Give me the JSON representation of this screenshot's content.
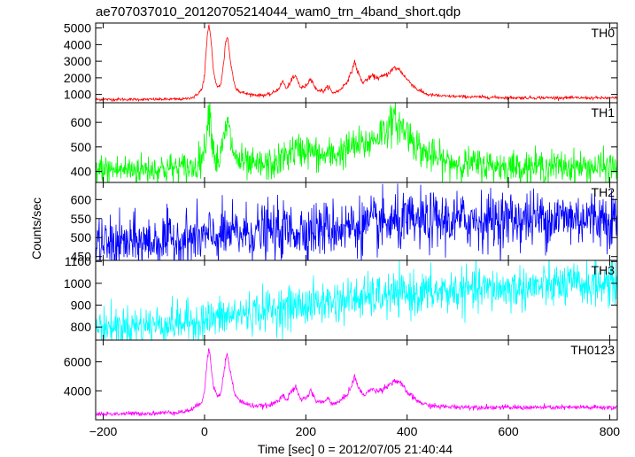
{
  "chart_data": {
    "type": "line",
    "title": "ae707037010_20120705214044_wam0_trn_4band_short.qdp",
    "xlabel": "Time [sec] 0 = 2012/07/05 21:40:44",
    "ylabel": "Counts/sec",
    "xlim": [
      -215,
      815
    ],
    "xticks": [
      -200,
      0,
      200,
      400,
      600,
      800
    ],
    "grid": false,
    "panels": [
      {
        "name": "TH0",
        "color": "#ff0000",
        "ylim": [
          500,
          5300
        ],
        "yticks": [
          1000,
          2000,
          3000,
          4000,
          5000
        ],
        "key_points": [
          [
            -200,
            700
          ],
          [
            -100,
            700
          ],
          [
            -40,
            720
          ],
          [
            -20,
            850
          ],
          [
            -5,
            1300
          ],
          [
            0,
            2200
          ],
          [
            5,
            4300
          ],
          [
            9,
            5200
          ],
          [
            13,
            4200
          ],
          [
            18,
            2300
          ],
          [
            25,
            1400
          ],
          [
            32,
            1600
          ],
          [
            38,
            2900
          ],
          [
            42,
            4300
          ],
          [
            46,
            4400
          ],
          [
            52,
            2800
          ],
          [
            60,
            1500
          ],
          [
            70,
            1150
          ],
          [
            90,
            1000
          ],
          [
            110,
            950
          ],
          [
            130,
            1000
          ],
          [
            145,
            1300
          ],
          [
            155,
            1800
          ],
          [
            162,
            1300
          ],
          [
            172,
            1900
          ],
          [
            180,
            2100
          ],
          [
            190,
            1400
          ],
          [
            200,
            1500
          ],
          [
            210,
            2000
          ],
          [
            220,
            1300
          ],
          [
            235,
            1200
          ],
          [
            245,
            1500
          ],
          [
            252,
            1100
          ],
          [
            265,
            1200
          ],
          [
            280,
            1700
          ],
          [
            290,
            2300
          ],
          [
            296,
            3000
          ],
          [
            302,
            2400
          ],
          [
            312,
            1700
          ],
          [
            330,
            2100
          ],
          [
            345,
            2000
          ],
          [
            360,
            2200
          ],
          [
            375,
            2600
          ],
          [
            385,
            2500
          ],
          [
            400,
            1900
          ],
          [
            420,
            1300
          ],
          [
            440,
            1000
          ],
          [
            470,
            900
          ],
          [
            600,
            800
          ],
          [
            700,
            800
          ],
          [
            810,
            780
          ]
        ]
      },
      {
        "name": "TH1",
        "color": "#00ff00",
        "ylim": [
          355,
          680
        ],
        "yticks": [
          400,
          500,
          600
        ],
        "key_points": [
          [
            -200,
            405
          ],
          [
            -100,
            410
          ],
          [
            -20,
            415
          ],
          [
            0,
            480
          ],
          [
            6,
            620
          ],
          [
            10,
            650
          ],
          [
            15,
            540
          ],
          [
            22,
            440
          ],
          [
            32,
            460
          ],
          [
            45,
            600
          ],
          [
            52,
            520
          ],
          [
            62,
            450
          ],
          [
            90,
            420
          ],
          [
            140,
            430
          ],
          [
            170,
            480
          ],
          [
            200,
            490
          ],
          [
            230,
            460
          ],
          [
            260,
            470
          ],
          [
            290,
            500
          ],
          [
            320,
            510
          ],
          [
            350,
            560
          ],
          [
            375,
            605
          ],
          [
            400,
            560
          ],
          [
            430,
            480
          ],
          [
            470,
            440
          ],
          [
            520,
            430
          ],
          [
            600,
            420
          ],
          [
            700,
            420
          ],
          [
            810,
            415
          ]
        ]
      },
      {
        "name": "TH2",
        "color": "#0000ff",
        "ylim": [
          440,
          645
        ],
        "yticks": [
          450,
          500,
          550,
          600
        ],
        "key_points": [
          [
            -200,
            480
          ],
          [
            -100,
            490
          ],
          [
            0,
            500
          ],
          [
            100,
            515
          ],
          [
            200,
            520
          ],
          [
            300,
            530
          ],
          [
            400,
            540
          ],
          [
            500,
            545
          ],
          [
            600,
            548
          ],
          [
            700,
            552
          ],
          [
            810,
            552
          ]
        ]
      },
      {
        "name": "TH3",
        "color": "#00ffff",
        "ylim": [
          740,
          1105
        ],
        "yticks": [
          800,
          900,
          1000,
          1100
        ],
        "key_points": [
          [
            -200,
            800
          ],
          [
            -100,
            810
          ],
          [
            0,
            830
          ],
          [
            100,
            870
          ],
          [
            200,
            900
          ],
          [
            300,
            930
          ],
          [
            400,
            950
          ],
          [
            500,
            965
          ],
          [
            600,
            975
          ],
          [
            700,
            990
          ],
          [
            810,
            1000
          ]
        ]
      },
      {
        "name": "TH0123",
        "color": "#ff00ff",
        "ylim": [
          2000,
          7500
        ],
        "yticks": [
          4000,
          6000
        ],
        "key_points": [
          [
            -200,
            2400
          ],
          [
            -100,
            2450
          ],
          [
            -40,
            2550
          ],
          [
            -20,
            2800
          ],
          [
            -5,
            3300
          ],
          [
            0,
            4000
          ],
          [
            5,
            6000
          ],
          [
            9,
            7000
          ],
          [
            13,
            5800
          ],
          [
            18,
            4300
          ],
          [
            25,
            3600
          ],
          [
            32,
            3800
          ],
          [
            38,
            5200
          ],
          [
            42,
            6300
          ],
          [
            46,
            6400
          ],
          [
            52,
            5100
          ],
          [
            60,
            3700
          ],
          [
            70,
            3300
          ],
          [
            90,
            3000
          ],
          [
            110,
            2950
          ],
          [
            130,
            3000
          ],
          [
            145,
            3300
          ],
          [
            155,
            3800
          ],
          [
            162,
            3300
          ],
          [
            172,
            4000
          ],
          [
            180,
            4200
          ],
          [
            190,
            3400
          ],
          [
            200,
            3500
          ],
          [
            210,
            4000
          ],
          [
            220,
            3300
          ],
          [
            235,
            3200
          ],
          [
            245,
            3500
          ],
          [
            252,
            3100
          ],
          [
            265,
            3200
          ],
          [
            280,
            3700
          ],
          [
            290,
            4300
          ],
          [
            296,
            5000
          ],
          [
            302,
            4400
          ],
          [
            312,
            3700
          ],
          [
            330,
            4100
          ],
          [
            345,
            4000
          ],
          [
            360,
            4300
          ],
          [
            375,
            4700
          ],
          [
            385,
            4600
          ],
          [
            400,
            3900
          ],
          [
            420,
            3300
          ],
          [
            440,
            3000
          ],
          [
            470,
            2900
          ],
          [
            600,
            2850
          ],
          [
            700,
            2850
          ],
          [
            810,
            2850
          ]
        ]
      }
    ]
  }
}
